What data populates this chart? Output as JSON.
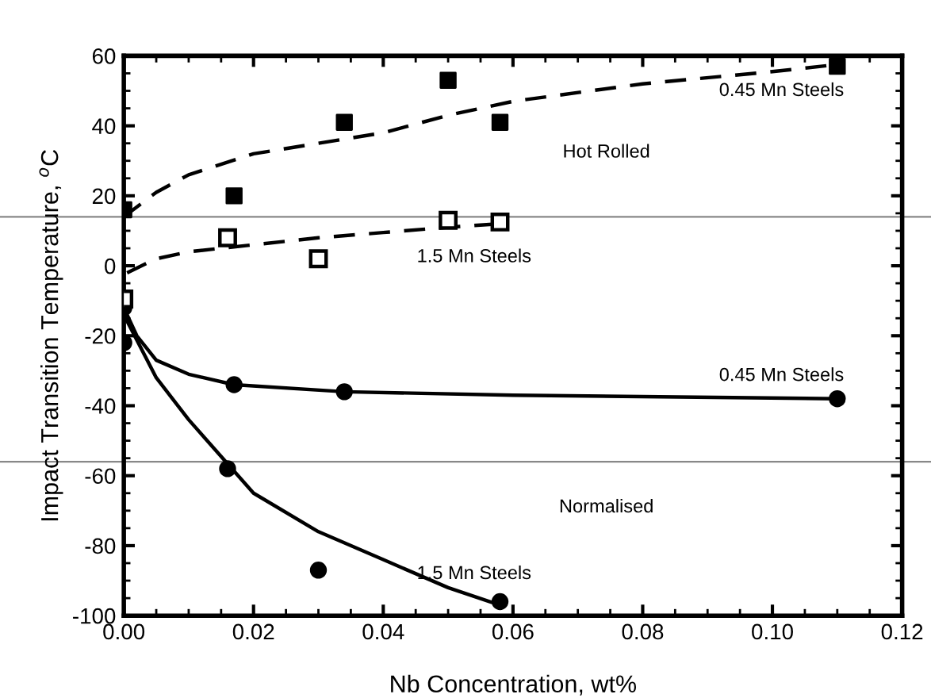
{
  "chart_data": {
    "type": "scatter",
    "xlabel": "Nb Concentration, wt%",
    "ylabel": "Impact Transition Temperature, $^{o}$C",
    "xlim": [
      0,
      0.12
    ],
    "ylim": [
      -100,
      60
    ],
    "xticks": [
      {
        "value": 0,
        "label": "0.00"
      },
      {
        "value": 0.02,
        "label": "0.02"
      },
      {
        "value": 0.04,
        "label": "0.04"
      },
      {
        "value": 0.06,
        "label": "0.06"
      },
      {
        "value": 0.08,
        "label": "0.08"
      },
      {
        "value": 0.1,
        "label": "0.10"
      },
      {
        "value": 0.12,
        "label": "0.12"
      }
    ],
    "yticks": [
      -100,
      -80,
      -60,
      -40,
      -20,
      0,
      20,
      40,
      60
    ],
    "grid": false,
    "legend": false,
    "series": [
      {
        "marker": "square",
        "color": "#000000",
        "x": [
          0,
          0.017,
          0.034,
          0.05,
          0.058,
          0.11
        ],
        "values": [
          16,
          20,
          41,
          53,
          41,
          57
        ]
      },
      {
        "type": "line",
        "line_style": "dashed",
        "marker": "none",
        "color": "#000000",
        "x": [
          0,
          0.005,
          0.01,
          0.02,
          0.03,
          0.04,
          0.05,
          0.06,
          0.08,
          0.1,
          0.11
        ],
        "values": [
          14,
          21,
          26,
          32,
          35,
          38,
          43,
          47,
          52,
          55.5,
          57.5
        ]
      },
      {
        "marker": "square",
        "color": "#000000",
        "x": [
          0,
          0.016,
          0.03,
          0.05,
          0.058
        ],
        "values": [
          -9.5,
          8,
          2,
          13,
          12.5
        ],
        "errors": [
          2,
          2,
          2,
          2,
          2
        ]
      },
      {
        "type": "line",
        "line_style": "dashed",
        "marker": "none",
        "color": "#000000",
        "x": [
          0.0005,
          0.005,
          0.01,
          0.02,
          0.03,
          0.04,
          0.05,
          0.058
        ],
        "values": [
          -2,
          2,
          4,
          6,
          8,
          9.5,
          11,
          12
        ]
      },
      {
        "marker": "circle",
        "color": "#000000",
        "x": [
          0,
          0.017,
          0.034,
          0.11
        ],
        "values": [
          -12,
          -34,
          -36,
          -38
        ]
      },
      {
        "type": "line",
        "line_style": "solid",
        "marker": "none",
        "color": "#000000",
        "x": [
          0,
          0.002,
          0.005,
          0.01,
          0.017,
          0.034,
          0.06,
          0.11
        ],
        "values": [
          -12,
          -20,
          -27,
          -31,
          -34,
          -36,
          -37,
          -38
        ]
      },
      {
        "marker": "circle",
        "color": "#000000",
        "x": [
          0,
          0.016,
          0.03,
          0.058
        ],
        "values": [
          -22,
          -58,
          -87,
          -96
        ]
      },
      {
        "type": "line",
        "line_style": "solid",
        "marker": "none",
        "color": "#000000",
        "x": [
          0,
          0.005,
          0.01,
          0.02,
          0.03,
          0.04,
          0.05,
          0.058
        ],
        "values": [
          -14,
          -32,
          -44,
          -65,
          -76,
          -84,
          -92,
          -97
        ]
      }
    ],
    "ref_lines": [
      {
        "axis": "y",
        "value": 14,
        "color": "#888888"
      },
      {
        "axis": "y",
        "value": -56,
        "color": "#888888"
      }
    ],
    "annotations": [
      "0.45 Mn Steels",
      "Hot Rolled",
      "1.5 Mn Steels",
      "0.45 Mn Steels",
      "Normalised",
      "1.5 Mn Steels"
    ]
  }
}
